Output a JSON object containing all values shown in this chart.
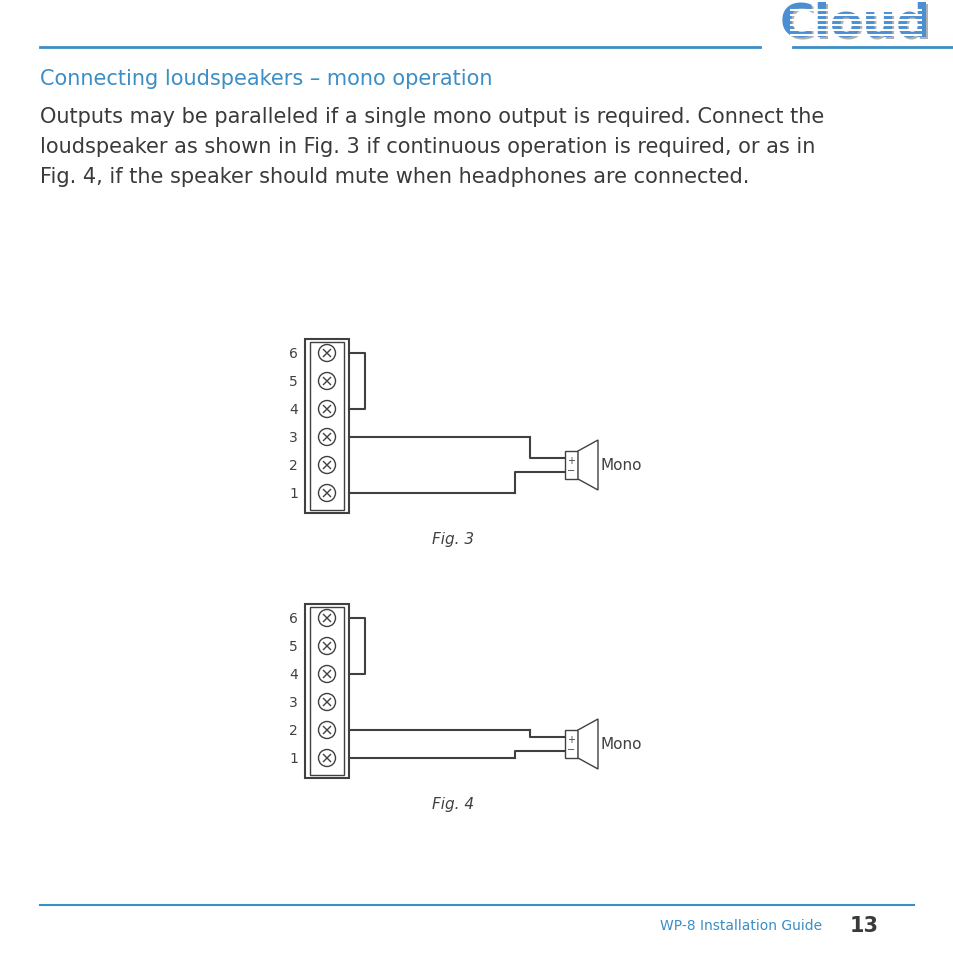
{
  "title": "Connecting loudspeakers – mono operation",
  "body_line1": "Outputs may be paralleled if a single mono output is required. Connect the",
  "body_line2": "loudspeaker as shown in Fig. 3 if continuous operation is required, or as in",
  "body_line3": "Fig. 4, if the speaker should mute when headphones are connected.",
  "fig3_caption": "Fig. 3",
  "fig4_caption": "Fig. 4",
  "footer_text": "WP-8 Installation Guide",
  "footer_page": "13",
  "title_color": "#3b8ec6",
  "body_color": "#3a3a3a",
  "line_color": "#3b8ec6",
  "diagram_color": "#404040",
  "footer_color": "#3b8ec6",
  "bg_color": "#ffffff",
  "logo_color": "#4a8fd4",
  "logo_shadow": "#b0b0b0"
}
